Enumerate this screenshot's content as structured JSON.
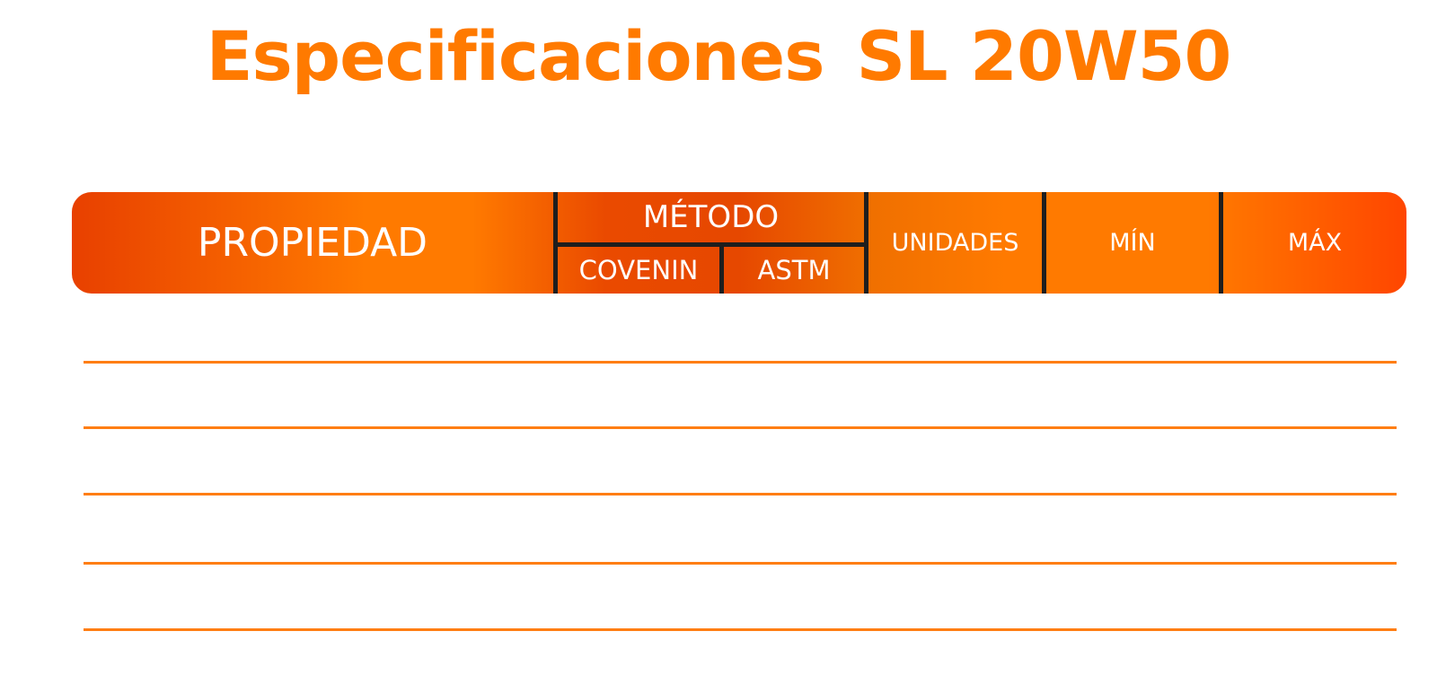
{
  "title": {
    "part1": "Especificaciones",
    "part2": "SL 20W50"
  },
  "table": {
    "headers": {
      "propiedad": "PROPIEDAD",
      "metodo": "MÉTODO",
      "covenin": "COVENIN",
      "astm": "ASTM",
      "unidades": "UNIDADES",
      "min": "MÍN",
      "max": "MÁX"
    },
    "rows": []
  },
  "colors": {
    "title": "#ff7a00",
    "header_gradient_start": "#e84000",
    "header_gradient_mid": "#ff7a00",
    "header_divider": "#1e1e1e",
    "row_line": "#ff7e14"
  }
}
